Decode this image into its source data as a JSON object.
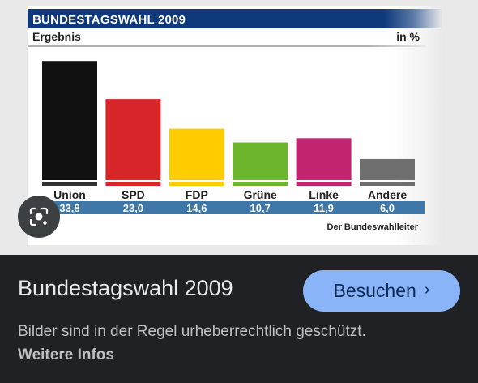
{
  "chart_data": {
    "type": "bar",
    "title": "BUNDESTAGSWAHL 2009",
    "subtitle": "Ergebnis",
    "unit": "in %",
    "categories": [
      "Union",
      "SPD",
      "FDP",
      "Grüne",
      "Linke",
      "Andere"
    ],
    "values": [
      33.8,
      23.0,
      14.6,
      10.7,
      11.9,
      6.0
    ],
    "value_labels": [
      "33,8",
      "23,0",
      "14,6",
      "10,7",
      "11,9",
      "6,0"
    ],
    "colors": [
      "#111111",
      "#d7252a",
      "#ffcc00",
      "#6cb52d",
      "#c2246f",
      "#6e6e6e"
    ],
    "ylim": [
      0,
      35
    ],
    "source": "Der Bundeswahlleiter"
  },
  "panel": {
    "title": "Bundestagswahl 2009",
    "visit_label": "Besuchen",
    "notice": "Bilder sind in der Regel urheberrechtlich geschützt.",
    "more_link": "Weitere Infos"
  },
  "icons": {
    "lens": "lens-icon",
    "chevron": "chevron-right-icon"
  }
}
